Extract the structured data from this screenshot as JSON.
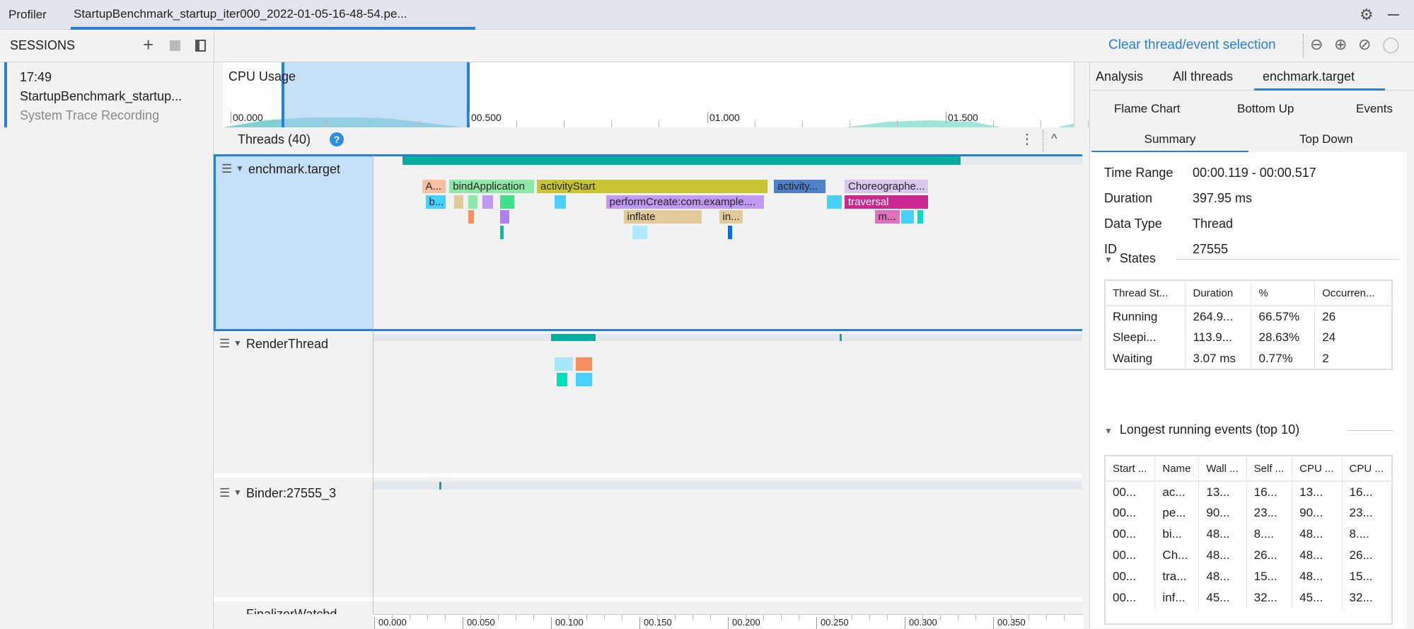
{
  "topbar": {
    "profiler_tab": "Profiler",
    "session_tab": "StartupBenchmark_startup_iter000_2022-01-05-16-48-54.pe..."
  },
  "sessions": {
    "title": "SESSIONS",
    "item": {
      "time": "17:49",
      "name": "StartupBenchmark_startup...",
      "type": "System Trace Recording"
    }
  },
  "toolbar": {
    "clear_selection": "Clear thread/event selection"
  },
  "cpu": {
    "title": "CPU Usage",
    "ticks": [
      "00.000",
      "00.500",
      "01.000",
      "01.500"
    ]
  },
  "threads": {
    "header": "Threads (40)",
    "rows": [
      {
        "name": "enchmark.target"
      },
      {
        "name": "RenderThread"
      },
      {
        "name": "Binder:27555_3"
      },
      {
        "name": "FinalizerWatchd..."
      }
    ],
    "axis_ticks": [
      "00.000",
      "00.050",
      "00.100",
      "00.150",
      "00.200",
      "00.250",
      "00.300",
      "00.350"
    ]
  },
  "flame": {
    "events": [
      {
        "label": "A...",
        "start": 0.027,
        "end": 0.041,
        "depth": 0,
        "color": "#f8c0a0"
      },
      {
        "label": "bindApplication",
        "start": 0.0425,
        "end": 0.091,
        "depth": 0,
        "color": "#8ee8a8"
      },
      {
        "label": "activityStart",
        "start": 0.092,
        "end": 0.223,
        "depth": 0,
        "color": "#c8c432"
      },
      {
        "label": "activity...",
        "start": 0.226,
        "end": 0.256,
        "depth": 0,
        "color": "#4f80c8"
      },
      {
        "label": "Choreographe...",
        "start": 0.266,
        "end": 0.314,
        "depth": 0,
        "color": "#d8c8f0"
      },
      {
        "label": "b...",
        "start": 0.029,
        "end": 0.041,
        "depth": 1,
        "color": "#48d0ff"
      },
      {
        "label": "performCreate:com.example....",
        "start": 0.131,
        "end": 0.221,
        "depth": 1,
        "color": "#c09af0"
      },
      {
        "label": "traversal",
        "start": 0.266,
        "end": 0.314,
        "depth": 1,
        "color": "#c82890",
        "text": "#fff"
      },
      {
        "label": "inflate",
        "start": 0.141,
        "end": 0.186,
        "depth": 2,
        "color": "#e0cc9a"
      },
      {
        "label": "in...",
        "start": 0.195,
        "end": 0.209,
        "depth": 2,
        "color": "#e0cc9a"
      },
      {
        "label": "m...",
        "start": 0.283,
        "end": 0.298,
        "depth": 2,
        "color": "#e070c0"
      },
      {
        "label": "",
        "start": 0.045,
        "end": 0.051,
        "depth": 1,
        "color": "#e0cc9a"
      },
      {
        "label": "",
        "start": 0.053,
        "end": 0.059,
        "depth": 1,
        "color": "#8ee8a8"
      },
      {
        "label": "",
        "start": 0.061,
        "end": 0.068,
        "depth": 1,
        "color": "#c09af0"
      },
      {
        "label": "",
        "start": 0.071,
        "end": 0.08,
        "depth": 1,
        "color": "#40e088"
      },
      {
        "label": "",
        "start": 0.102,
        "end": 0.109,
        "depth": 1,
        "color": "#48d0ff"
      },
      {
        "label": "",
        "start": 0.256,
        "end": 0.265,
        "depth": 1,
        "color": "#48d0ff"
      },
      {
        "label": "",
        "start": 0.298,
        "end": 0.306,
        "depth": 2,
        "color": "#48d0ff"
      },
      {
        "label": "",
        "start": 0.307,
        "end": 0.311,
        "depth": 2,
        "color": "#00e0c0"
      },
      {
        "label": "",
        "start": 0.053,
        "end": 0.057,
        "depth": 2,
        "color": "#f89060"
      },
      {
        "label": "",
        "start": 0.071,
        "end": 0.077,
        "depth": 2,
        "color": "#b080f0"
      },
      {
        "label": "",
        "start": 0.146,
        "end": 0.155,
        "depth": 3,
        "color": "#b0e8ff"
      },
      {
        "label": "",
        "start": 0.071,
        "end": 0.074,
        "depth": 3,
        "color": "#00c0a0"
      },
      {
        "label": "",
        "start": 0.2,
        "end": 0.203,
        "depth": 3,
        "color": "#0070f0"
      }
    ]
  },
  "render": {
    "events": [
      {
        "start": 0.102,
        "end": 0.113,
        "depth": 0,
        "color": "#a8e8ff"
      },
      {
        "start": 0.114,
        "end": 0.124,
        "depth": 0,
        "color": "#f89060"
      },
      {
        "start": 0.103,
        "end": 0.11,
        "depth": 1,
        "color": "#00e0c0"
      },
      {
        "start": 0.114,
        "end": 0.124,
        "depth": 1,
        "color": "#48d0ff"
      }
    ]
  },
  "right": {
    "tabs": [
      "Analysis",
      "All threads",
      "enchmark.target"
    ],
    "subtabs": [
      "Flame Chart",
      "Bottom Up",
      "Events",
      "Summary",
      "Top Down"
    ],
    "summary": [
      {
        "k": "Time Range",
        "v": "00:00.119 - 00:00.517"
      },
      {
        "k": "Duration",
        "v": "397.95 ms"
      },
      {
        "k": "Data Type",
        "v": "Thread"
      },
      {
        "k": "ID",
        "v": "27555"
      }
    ],
    "states": {
      "title": "States",
      "headers": [
        "Thread St...",
        "Duration",
        "%",
        "Occurren..."
      ],
      "rows": [
        [
          "Running",
          "264.9...",
          "66.57%",
          "26"
        ],
        [
          "Sleepi...",
          "113.9...",
          "28.63%",
          "24"
        ],
        [
          "Waiting",
          "3.07 ms",
          "0.77%",
          "2"
        ]
      ]
    },
    "longest": {
      "title": "Longest running events (top 10)",
      "headers": [
        "Start ...",
        "Name",
        "Wall ...",
        "Self ...",
        "CPU ...",
        "CPU ..."
      ],
      "rows": [
        [
          "00...",
          "ac...",
          "13...",
          "16...",
          "13...",
          "16..."
        ],
        [
          "00...",
          "pe...",
          "90...",
          "23...",
          "90...",
          "23..."
        ],
        [
          "00...",
          "bi...",
          "48...",
          "8....",
          "48...",
          "8...."
        ],
        [
          "00...",
          "Ch...",
          "48...",
          "26...",
          "48...",
          "26..."
        ],
        [
          "00...",
          "tra...",
          "48...",
          "15...",
          "48...",
          "15..."
        ],
        [
          "00...",
          "inf...",
          "45...",
          "32...",
          "45...",
          "32..."
        ]
      ]
    }
  },
  "colors": {
    "accent": "#2a7fd4",
    "selection": "#c5e0f7",
    "running": "#00b09a"
  }
}
